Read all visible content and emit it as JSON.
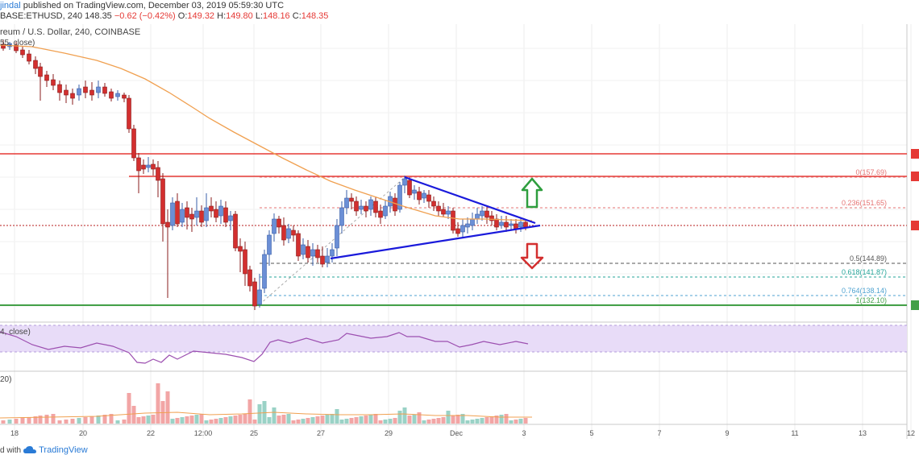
{
  "header": {
    "author": "jindal",
    "published": "published on TradingView.com, December 03, 2019 05:59:30 UTC",
    "symbol": "BASE:ETHUSD, 240",
    "last": "148.35",
    "change": "−0.62 (−0.42%)",
    "o_label": "O:",
    "o_val": "149.32",
    "h_label": "H:",
    "h_val": "149.80",
    "l_label": "L:",
    "l_val": "148.16",
    "c_label": "C:",
    "c_val": "148.35",
    "title": "reum / U.S. Dollar, 240, COINBASE",
    "ma_label": "55, close)"
  },
  "rsi_label": "4, close)",
  "vol_label": "20)",
  "footer": {
    "created": "d with",
    "brand": "TradingView"
  },
  "colors": {
    "up": "#6b8fd6",
    "down": "#d32f2f",
    "ma": "#f0a050",
    "trend": "#1a1adb",
    "resistance": "#e53935",
    "support": "#43a047",
    "rsi_band": "#e8dcf8",
    "rsi_line": "#9c4fb0",
    "vol_up": "#9ad2c6",
    "vol_down": "#f2a5a5"
  },
  "chart_data": {
    "type": "candlestick",
    "x_ticks": [
      "18",
      "20",
      "22",
      "12:00",
      "25",
      "27",
      "29",
      "Dec",
      "3",
      "5",
      "7",
      "9",
      "11",
      "13",
      "12"
    ],
    "fib_levels": [
      {
        "ratio": "0",
        "price": "157.69"
      },
      {
        "ratio": "0.236",
        "price": "151.65"
      },
      {
        "ratio": "0.5",
        "price": "144.89"
      },
      {
        "ratio": "0.618",
        "price": "141.87"
      },
      {
        "ratio": "0.764",
        "price": "138.14"
      },
      {
        "ratio": "1",
        "price": "132.10"
      }
    ]
  }
}
